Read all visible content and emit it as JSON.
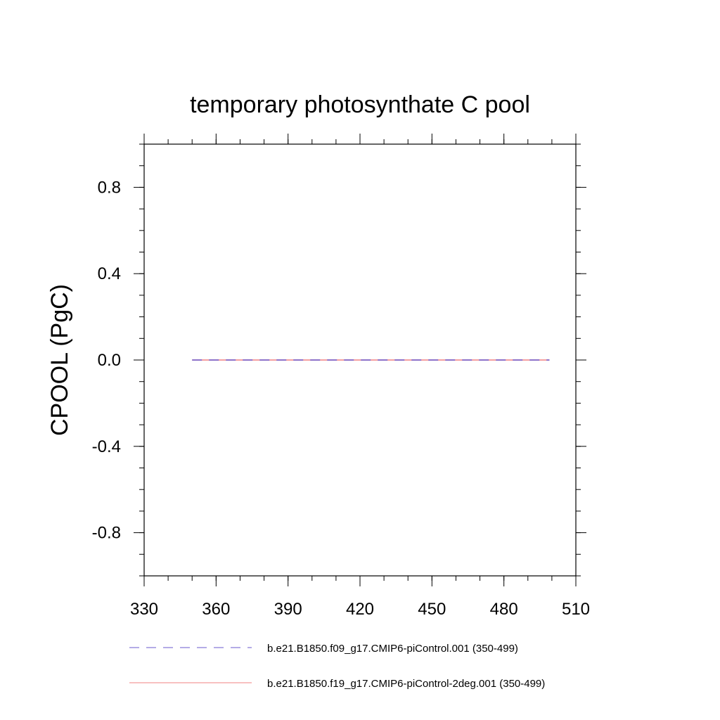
{
  "chart_data": {
    "type": "line",
    "title": "temporary photosynthate C pool",
    "xlabel": "",
    "ylabel": "CPOOL  (PgC)",
    "xlim": [
      330,
      510
    ],
    "ylim": [
      -1.0,
      1.0
    ],
    "x_ticks": [
      330,
      360,
      390,
      420,
      450,
      480,
      510
    ],
    "x_tick_labels": [
      "330",
      "360",
      "390",
      "420",
      "450",
      "480",
      "510"
    ],
    "y_ticks": [
      -0.8,
      -0.4,
      0.0,
      0.4,
      0.8
    ],
    "y_tick_labels": [
      "-0.8",
      "-0.4",
      "0.0",
      "0.4",
      "0.8"
    ],
    "grid": false,
    "legend_position": "bottom",
    "series": [
      {
        "name": "b.e21.B1850.f09_g17.CMIP6-piControl.001 (350-499)",
        "color": "#6a5acd",
        "style": "dashed",
        "x": [
          350,
          499
        ],
        "y": [
          0.0,
          0.0
        ]
      },
      {
        "name": "b.e21.B1850.f19_g17.CMIP6-piControl-2deg.001 (350-499)",
        "color": "#f08080",
        "style": "solid",
        "x": [
          350,
          499
        ],
        "y": [
          0.0,
          0.0
        ]
      }
    ]
  }
}
